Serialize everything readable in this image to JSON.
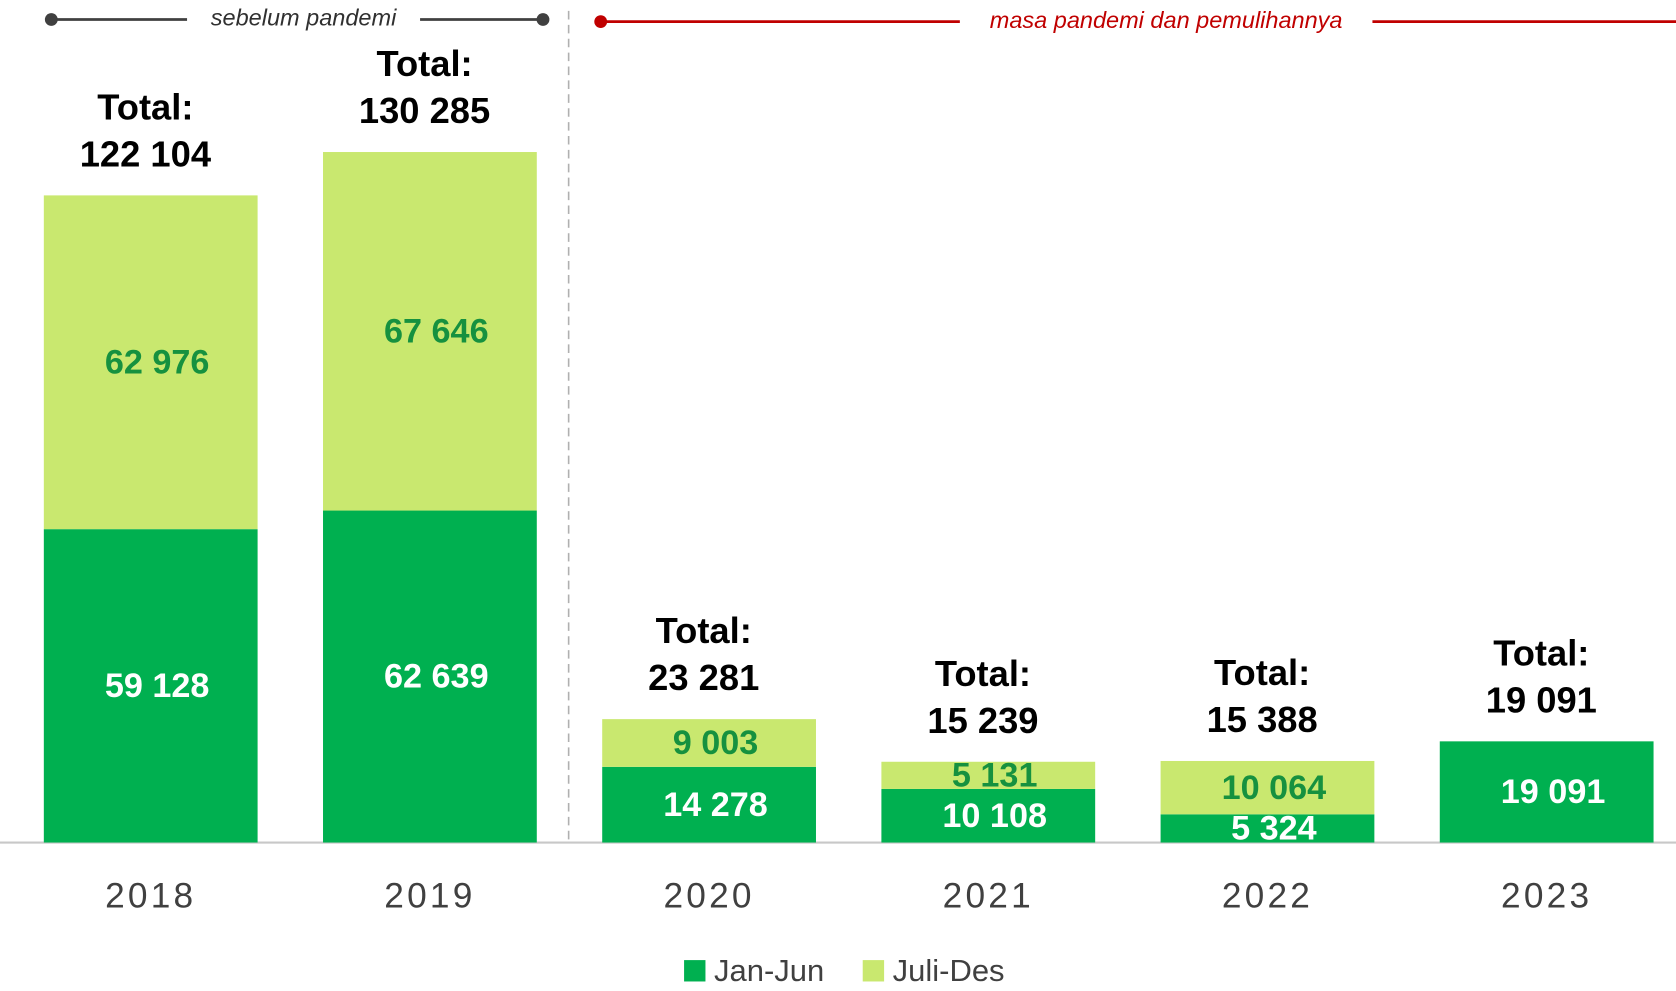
{
  "chart_data": {
    "type": "stacked-bar",
    "annotations": [
      "sebelum pandemi",
      "masa pandemi dan pemulihannya"
    ],
    "categories": [
      "2018",
      "2019",
      "2020",
      "2021",
      "2022",
      "2023"
    ],
    "series": [
      {
        "name": "Jan-Jun",
        "color": "#00b050",
        "label_color": "#ffffff",
        "values": [
          59128,
          62639,
          14278,
          10108,
          5324,
          19091
        ],
        "value_labels": [
          "59 128",
          "62 639",
          "14 278",
          "10 108",
          "5 324",
          "19 091"
        ]
      },
      {
        "name": "Juli-Des",
        "color": "#c9e86f",
        "label_color": "#16913f",
        "values": [
          62976,
          67646,
          9003,
          5131,
          10064,
          null
        ],
        "value_labels": [
          "62 976",
          "67 646",
          "9 003",
          "5 131",
          "10 064",
          null
        ]
      }
    ],
    "total_title": "Total:",
    "totals": [
      122104,
      130285,
      23281,
      15239,
      15388,
      19091
    ],
    "total_labels": [
      "122 104",
      "130 285",
      "23 281",
      "15 239",
      "15 388",
      "19 091"
    ]
  }
}
